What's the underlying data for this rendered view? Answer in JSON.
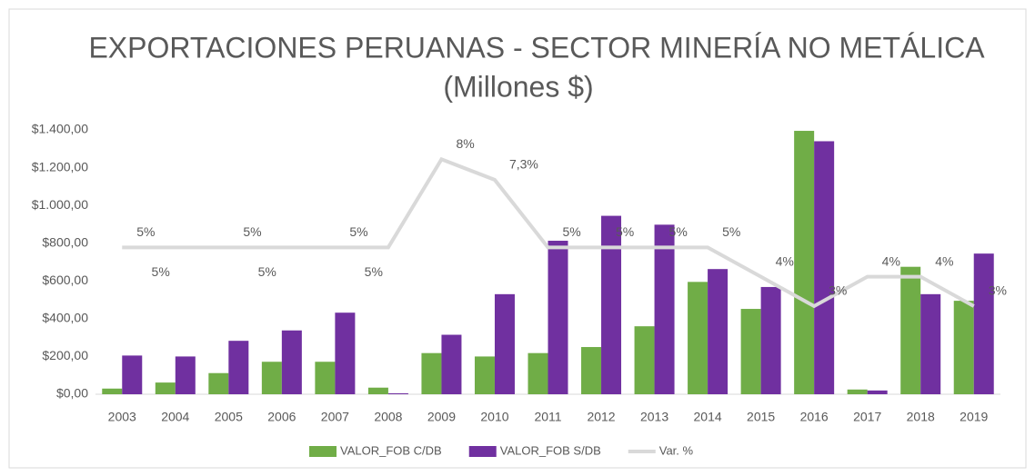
{
  "chart_data": {
    "type": "bar-line",
    "title": "EXPORTACIONES PERUANAS - SECTOR MINERÍA NO METÁLICA",
    "subtitle": "(Millones $)",
    "categories": [
      "2003",
      "2004",
      "2005",
      "2006",
      "2007",
      "2008",
      "2009",
      "2010",
      "2011",
      "2012",
      "2013",
      "2014",
      "2015",
      "2016",
      "2017",
      "2018",
      "2019"
    ],
    "series": [
      {
        "name": "VALOR_FOB C/DB",
        "type": "bar",
        "color": "#70ad47",
        "values": [
          30,
          62,
          112,
          172,
          172,
          35,
          218,
          200,
          218,
          250,
          360,
          595,
          452,
          1395,
          25,
          675,
          495
        ]
      },
      {
        "name": "VALOR_FOB S/DB",
        "type": "bar",
        "color": "#7030a0",
        "values": [
          205,
          200,
          283,
          338,
          432,
          5,
          315,
          530,
          813,
          945,
          898,
          663,
          568,
          1340,
          20,
          530,
          745
        ]
      },
      {
        "name": "Var. %",
        "type": "line",
        "axis": "y2",
        "color": "#d9d9d9",
        "values": [
          5,
          5,
          5,
          5,
          5,
          5,
          8,
          7.3,
          5,
          5,
          5,
          5,
          4,
          3,
          4,
          4,
          3
        ],
        "value_labels": [
          "5%",
          "5%",
          "5%",
          "5%",
          "5%",
          "5%",
          "8%",
          "7,3%",
          "5%",
          "5%",
          "5%",
          "5%",
          "4%",
          "3%",
          "4%",
          "4%",
          "3%"
        ]
      }
    ],
    "ylim": [
      0,
      1400
    ],
    "yticks": [
      {
        "value": 0,
        "label": "$0,00"
      },
      {
        "value": 200,
        "label": "$200,00"
      },
      {
        "value": 400,
        "label": "$400,00"
      },
      {
        "value": 600,
        "label": "$600,00"
      },
      {
        "value": 800,
        "label": "$800,00"
      },
      {
        "value": 1000,
        "label": "$1.000,00"
      },
      {
        "value": 1200,
        "label": "$1.200,00"
      },
      {
        "value": 1400,
        "label": "$1.400,00"
      }
    ],
    "y2lim": [
      0,
      9
    ],
    "legend": "bottom"
  }
}
